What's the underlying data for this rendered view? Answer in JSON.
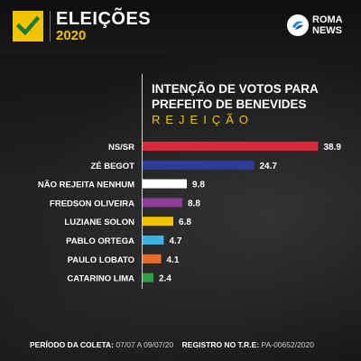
{
  "header": {
    "title": "ELEIÇÕES",
    "year": "2020",
    "logo_line1": "ROMA",
    "logo_line2": "NEWS"
  },
  "chart_data": {
    "type": "bar",
    "orientation": "horizontal",
    "title_line1": "INTENÇÃO DE VOTOS PARA",
    "title_line2": "PREFEITO DE BENEVIDES",
    "subtitle": "REJEIÇÃO",
    "categories": [
      "NS/SR",
      "ZÉ BEGOT",
      "NÃO REJEITA NENHUM",
      "FREDSON OLIVEIRA",
      "LUZIANE SOLON",
      "PABLO ORTEGA",
      "PAULO LOBATO",
      "CATARINO LIMA"
    ],
    "values": [
      38.9,
      24.7,
      9.8,
      8.8,
      6.8,
      4.7,
      4.1,
      2.4
    ],
    "value_labels": [
      "38.9",
      "24.7",
      "9.8",
      "8.8",
      "6.8",
      "4.7",
      "4.1",
      "2.4"
    ],
    "bar_colors": [
      "#d6283b",
      "#2e3a9c",
      "#ffffff",
      "#8e3b9a",
      "#f2c200",
      "#3ab0e0",
      "#ee6a2c",
      "#2ea046"
    ],
    "xlim": [
      0,
      40
    ]
  },
  "footer": {
    "collection_label": "PERÍODO DA COLETA:",
    "collection_value": "07/07 A 09/07/20",
    "registry_label": "REGISTRO NO T.R.E:",
    "registry_value": "PA-00652/2020"
  },
  "colors": {
    "accent": "#f2c200",
    "background": "#151515"
  },
  "icons": {
    "checkmark": "check-icon",
    "logo": "roma-news-logo-icon"
  }
}
